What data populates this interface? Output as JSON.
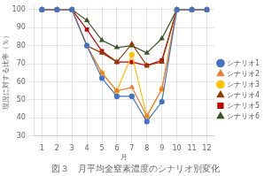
{
  "chart_data": {
    "type": "line",
    "title": "図３　月平均全窒素濃度のシナリオ別変化",
    "xlabel": "月",
    "ylabel": "現況に対する比率（％）",
    "x": [
      1,
      2,
      3,
      4,
      5,
      6,
      7,
      8,
      9,
      10,
      11,
      12
    ],
    "xlim": [
      0.5,
      12.5
    ],
    "xticks": [
      1,
      2,
      3,
      4,
      5,
      6,
      7,
      8,
      9,
      10,
      11,
      12
    ],
    "ylim": [
      30,
      102
    ],
    "yticks": [
      30,
      40,
      50,
      60,
      70,
      80,
      90,
      100
    ],
    "grid": true,
    "legend": "right",
    "series": [
      {
        "name": "シナリオ1",
        "color": "#4472C4",
        "marker": "circle",
        "values": [
          100,
          100,
          100,
          80,
          62,
          52,
          52,
          38,
          49,
          100,
          100,
          100
        ]
      },
      {
        "name": "シナリオ2",
        "color": "#ED7D31",
        "marker": "triangle",
        "values": [
          100,
          100,
          100,
          80,
          65,
          55,
          57,
          41,
          56,
          100,
          100,
          100
        ]
      },
      {
        "name": "シナリオ3",
        "color": "#FFC000",
        "marker": "circle",
        "values": [
          100,
          100,
          100,
          80,
          65,
          55,
          75,
          41,
          56,
          100,
          100,
          100
        ]
      },
      {
        "name": "シナリオ4",
        "color": "#963800",
        "marker": "triangle",
        "values": [
          100,
          100,
          100,
          80,
          76,
          71,
          81,
          69,
          71,
          100,
          100,
          100
        ]
      },
      {
        "name": "シナリオ5",
        "color": "#C00000",
        "marker": "square",
        "values": [
          100,
          100,
          100,
          89,
          77,
          71,
          71,
          69,
          72,
          100,
          100,
          100
        ]
      },
      {
        "name": "シナリオ6",
        "color": "#375623",
        "marker": "triangle",
        "values": [
          100,
          100,
          100,
          94,
          83,
          79,
          80,
          76,
          84,
          100,
          100,
          100
        ]
      }
    ]
  }
}
